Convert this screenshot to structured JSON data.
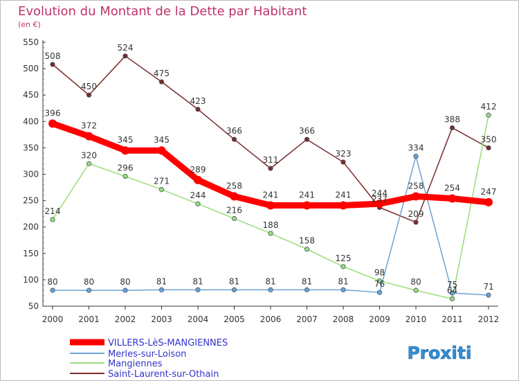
{
  "chart_data": {
    "type": "line",
    "title": "Evolution du Montant de la Dette par Habitant",
    "subtitle": "(en €)",
    "x": [
      "2000",
      "2001",
      "2002",
      "2003",
      "2004",
      "2005",
      "2006",
      "2007",
      "2008",
      "2009",
      "2010",
      "2011",
      "2012"
    ],
    "yticks": [
      50,
      100,
      150,
      200,
      250,
      300,
      350,
      400,
      450,
      500,
      550
    ],
    "ylim": [
      50,
      550
    ],
    "grid": false,
    "legend_position": "bottom-left",
    "series": [
      {
        "name": "VILLERS-LèS-MANGIENNES",
        "color": "#ff0000",
        "values": [
          396,
          372,
          345,
          345,
          289,
          258,
          241,
          241,
          241,
          244,
          258,
          254,
          247
        ],
        "labels": [
          "396",
          "372",
          "345",
          "345",
          "289",
          "258",
          "241",
          "241",
          "241",
          "244",
          "258",
          "254",
          "247"
        ]
      },
      {
        "name": "Merles-sur-Loison",
        "color": "#6aa3d5",
        "values": [
          80,
          80,
          80,
          81,
          81,
          81,
          81,
          81,
          81,
          76,
          334,
          75,
          71
        ],
        "labels": [
          "80",
          "80",
          "80",
          "81",
          "81",
          "81",
          "81",
          "81",
          "81",
          "76",
          "334",
          "75",
          "71"
        ]
      },
      {
        "name": "Mangiennes",
        "color": "#99dd77",
        "values": [
          214,
          320,
          296,
          271,
          244,
          216,
          188,
          158,
          125,
          98,
          80,
          64,
          412
        ],
        "labels": [
          "214",
          "320",
          "296",
          "271",
          "244",
          "216",
          "188",
          "158",
          "125",
          "98",
          "80",
          "64",
          "412"
        ]
      },
      {
        "name": "Saint-Laurent-sur-Othain",
        "color": "#7a2a2a",
        "values": [
          508,
          450,
          524,
          475,
          423,
          366,
          311,
          366,
          323,
          237,
          209,
          388,
          350
        ],
        "labels": [
          "508",
          "450",
          "524",
          "475",
          "423",
          "366",
          "311",
          "366",
          "323",
          "237",
          "209",
          "388",
          "350"
        ]
      }
    ]
  },
  "brand": {
    "name": "Proxiti"
  }
}
